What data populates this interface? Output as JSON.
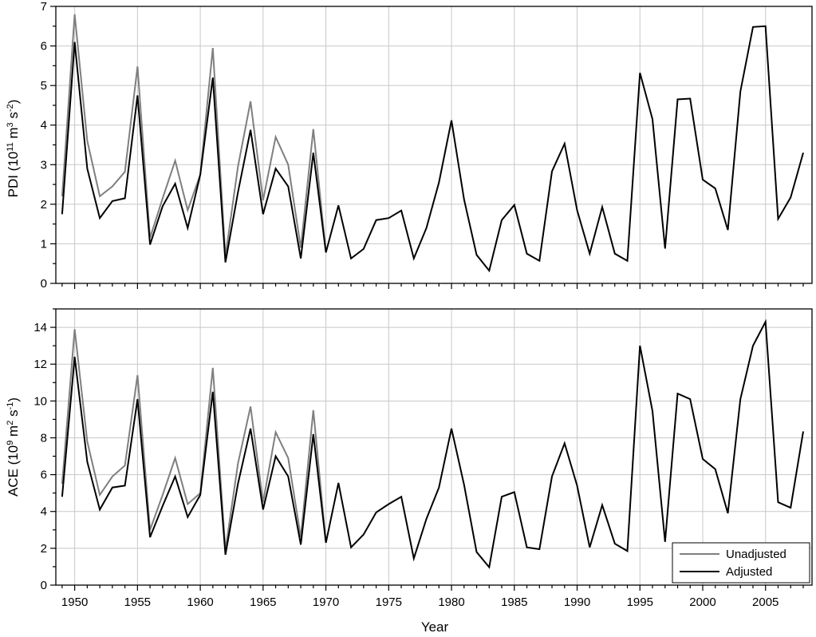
{
  "chart_data": [
    {
      "type": "line",
      "ylabel": "PDI (10¹¹ m³ s⁻²)",
      "ylabel_parts": {
        "main": "PDI (10",
        "s1": "11",
        "m1": " m",
        "s2": "3",
        "m2": " s",
        "s3": "-2",
        "end": ")"
      },
      "xlim": [
        1948.5,
        2008.7
      ],
      "ylim": [
        0,
        7
      ],
      "yticks": [
        0,
        1,
        2,
        3,
        4,
        5,
        6,
        7
      ],
      "ytick_labels": [
        "0",
        "1",
        "2",
        "3",
        "4",
        "5",
        "6",
        "7"
      ],
      "grid": true,
      "series": [
        {
          "name": "Unadjusted",
          "color": "#7f7f7f",
          "x": [
            1949,
            1950,
            1951,
            1952,
            1953,
            1954,
            1955,
            1956,
            1957,
            1958,
            1959,
            1960,
            1961,
            1962,
            1963,
            1964,
            1965,
            1966,
            1967,
            1968,
            1969,
            1970
          ],
          "values": [
            2.2,
            6.8,
            3.6,
            2.2,
            2.45,
            2.82,
            5.48,
            1.15,
            2.15,
            3.1,
            1.85,
            2.75,
            5.95,
            0.68,
            2.95,
            4.6,
            2.1,
            3.7,
            3.0,
            0.9,
            3.9,
            0.78
          ]
        },
        {
          "name": "Adjusted",
          "color": "#000000",
          "x": [
            1949,
            1950,
            1951,
            1952,
            1953,
            1954,
            1955,
            1956,
            1957,
            1958,
            1959,
            1960,
            1961,
            1962,
            1963,
            1964,
            1965,
            1966,
            1967,
            1968,
            1969,
            1970,
            1971,
            1972,
            1973,
            1974,
            1975,
            1976,
            1977,
            1978,
            1979,
            1980,
            1981,
            1982,
            1983,
            1984,
            1985,
            1986,
            1987,
            1988,
            1989,
            1990,
            1991,
            1992,
            1993,
            1994,
            1995,
            1996,
            1997,
            1998,
            1999,
            2000,
            2001,
            2002,
            2003,
            2004,
            2005,
            2006,
            2007,
            2008
          ],
          "values": [
            1.75,
            6.1,
            2.9,
            1.65,
            2.08,
            2.15,
            4.75,
            0.98,
            1.95,
            2.52,
            1.4,
            2.75,
            5.2,
            0.53,
            2.3,
            3.88,
            1.75,
            2.9,
            2.45,
            0.63,
            3.3,
            0.78,
            1.97,
            0.63,
            0.87,
            1.6,
            1.65,
            1.84,
            0.63,
            1.4,
            2.55,
            4.12,
            2.12,
            0.72,
            0.32,
            1.6,
            1.98,
            0.75,
            0.57,
            2.83,
            3.53,
            1.85,
            0.75,
            1.93,
            0.75,
            0.57,
            5.32,
            4.15,
            0.88,
            4.65,
            4.67,
            2.62,
            2.4,
            1.35,
            4.85,
            6.48,
            6.5,
            1.63,
            2.17,
            3.3
          ]
        }
      ]
    },
    {
      "type": "line",
      "xlabel": "Year",
      "ylabel": "ACE (10⁹ m² s⁻¹)",
      "ylabel_parts": {
        "main": "ACE (10",
        "s1": "9",
        "m1": " m",
        "s2": "2",
        "m2": " s",
        "s3": "-1",
        "end": ")"
      },
      "xlim": [
        1948.5,
        2008.7
      ],
      "ylim": [
        0,
        15
      ],
      "xticks": [
        1950,
        1955,
        1960,
        1965,
        1970,
        1975,
        1980,
        1985,
        1990,
        1995,
        2000,
        2005
      ],
      "xtick_labels": [
        "1950",
        "1955",
        "1960",
        "1965",
        "1970",
        "1975",
        "1980",
        "1985",
        "1990",
        "1995",
        "2000",
        "2005"
      ],
      "yticks": [
        0,
        2,
        4,
        6,
        8,
        10,
        12,
        14
      ],
      "ytick_labels": [
        "0",
        "2",
        "4",
        "6",
        "8",
        "10",
        "12",
        "14"
      ],
      "grid": true,
      "legend": {
        "position": "bottom-right",
        "entries": [
          "Unadjusted",
          "Adjusted"
        ]
      },
      "series": [
        {
          "name": "Unadjusted",
          "color": "#7f7f7f",
          "x": [
            1949,
            1950,
            1951,
            1952,
            1953,
            1954,
            1955,
            1956,
            1957,
            1958,
            1959,
            1960,
            1961,
            1962,
            1963,
            1964,
            1965,
            1966,
            1967,
            1968,
            1969,
            1970
          ],
          "values": [
            5.5,
            13.9,
            7.8,
            4.9,
            5.9,
            6.5,
            11.4,
            3.0,
            4.9,
            6.9,
            4.4,
            5.0,
            11.8,
            1.9,
            6.6,
            9.7,
            4.5,
            8.3,
            6.9,
            2.6,
            9.5,
            2.3
          ]
        },
        {
          "name": "Adjusted",
          "color": "#000000",
          "x": [
            1949,
            1950,
            1951,
            1952,
            1953,
            1954,
            1955,
            1956,
            1957,
            1958,
            1959,
            1960,
            1961,
            1962,
            1963,
            1964,
            1965,
            1966,
            1967,
            1968,
            1969,
            1970,
            1971,
            1972,
            1973,
            1974,
            1975,
            1976,
            1977,
            1978,
            1979,
            1980,
            1981,
            1982,
            1983,
            1984,
            1985,
            1986,
            1987,
            1988,
            1989,
            1990,
            1991,
            1992,
            1993,
            1994,
            1995,
            1996,
            1997,
            1998,
            1999,
            2000,
            2001,
            2002,
            2003,
            2004,
            2005,
            2006,
            2007,
            2008
          ],
          "values": [
            4.8,
            12.4,
            6.7,
            4.1,
            5.3,
            5.4,
            10.1,
            2.6,
            4.3,
            5.9,
            3.7,
            4.9,
            10.5,
            1.65,
            5.5,
            8.5,
            4.1,
            7.0,
            5.9,
            2.2,
            8.2,
            2.3,
            5.55,
            2.05,
            2.75,
            3.95,
            4.4,
            4.8,
            1.45,
            3.6,
            5.3,
            8.5,
            5.45,
            1.8,
            0.97,
            4.8,
            5.05,
            2.05,
            1.95,
            5.9,
            7.7,
            5.4,
            2.05,
            4.35,
            2.25,
            1.85,
            13.0,
            9.45,
            2.35,
            10.4,
            10.1,
            6.85,
            6.3,
            3.9,
            10.1,
            13.0,
            14.3,
            4.5,
            4.2,
            8.35
          ]
        }
      ]
    }
  ]
}
